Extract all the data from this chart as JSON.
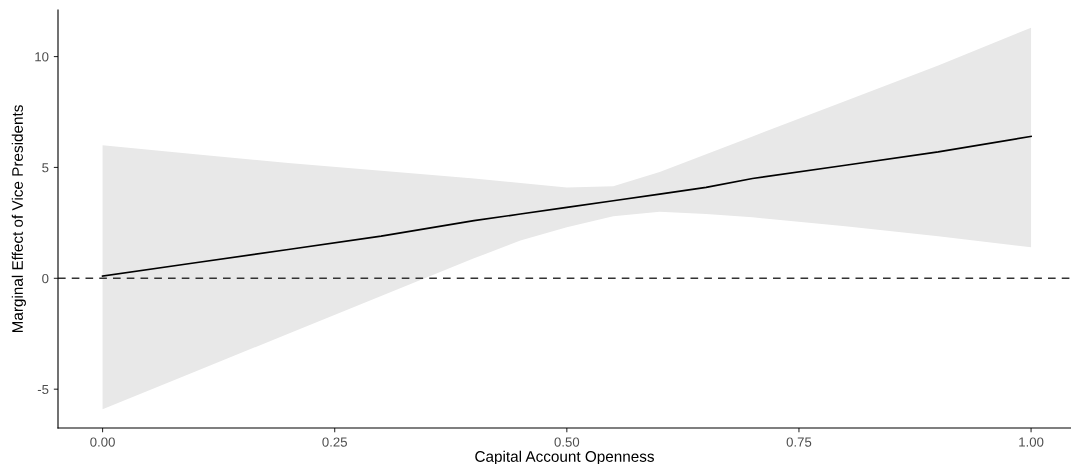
{
  "chart_data": {
    "type": "line",
    "xlabel": "Capital Account Openness",
    "ylabel": "Marginal Effect of Vice Presidents",
    "series": [
      {
        "color": "#000000",
        "x": [
          0,
          0.1,
          0.2,
          0.3,
          0.4,
          0.45,
          0.5,
          0.55,
          0.6,
          0.65,
          0.7,
          0.8,
          0.9,
          1.0
        ],
        "values": [
          0.1,
          0.7,
          1.3,
          1.9,
          2.6,
          2.9,
          3.2,
          3.5,
          3.8,
          4.1,
          4.5,
          5.1,
          5.7,
          6.4
        ],
        "lower": [
          -5.9,
          -4.2,
          -2.5,
          -0.8,
          0.9,
          1.7,
          2.3,
          2.8,
          3.0,
          2.9,
          2.75,
          2.35,
          1.9,
          1.4
        ],
        "upper": [
          6.0,
          5.6,
          5.2,
          4.85,
          4.5,
          4.3,
          4.1,
          4.15,
          4.8,
          5.6,
          6.4,
          8.0,
          9.6,
          11.3
        ]
      }
    ],
    "xlim": [
      -0.048,
      1.043
    ],
    "ylim": [
      -6.75,
      12.1
    ],
    "xticks": [
      {
        "value": 0,
        "label": "0.00"
      },
      {
        "value": 0.25,
        "label": "0.25"
      },
      {
        "value": 0.5,
        "label": "0.50"
      },
      {
        "value": 0.75,
        "label": "0.75"
      },
      {
        "value": 1,
        "label": "1.00"
      }
    ],
    "yticks": [
      -5,
      0,
      5,
      10
    ],
    "ref_lines": [
      {
        "axis": "y",
        "value": 0,
        "color": "#333333",
        "line_style": "dashed"
      }
    ],
    "grid": false,
    "legend": false,
    "marker": "none",
    "line_style": "solid"
  }
}
